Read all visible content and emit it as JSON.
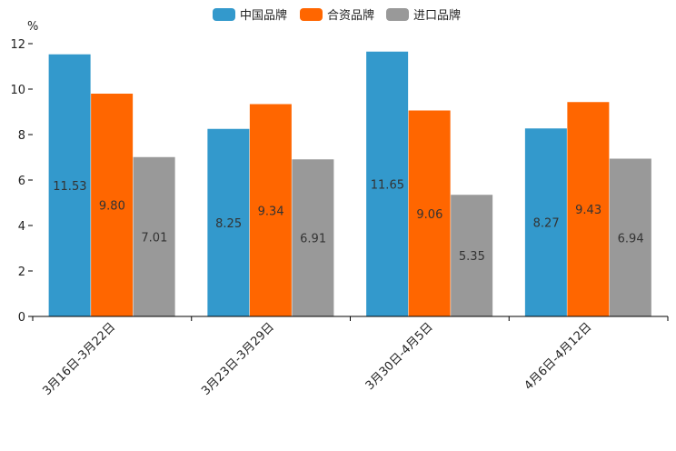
{
  "chart_data": {
    "type": "bar",
    "title": "",
    "xlabel": "",
    "ylabel": "%",
    "ylim": [
      0,
      12
    ],
    "yticks": [
      0,
      2,
      4,
      6,
      8,
      10,
      12
    ],
    "grid": false,
    "legend_position": "top-center",
    "categories": [
      "3月16日-3月22日",
      "3月23日-3月29日",
      "3月30日-4月5日",
      "4月6日-4月12日"
    ],
    "series": [
      {
        "name": "中国品牌",
        "color": "#3399CC",
        "values": [
          11.53,
          8.25,
          11.65,
          8.27
        ],
        "labels": [
          "11.53",
          "8.25",
          "11.65",
          "8.27"
        ]
      },
      {
        "name": "合资品牌",
        "color": "#FF6600",
        "values": [
          9.8,
          9.34,
          9.06,
          9.43
        ],
        "labels": [
          "9.80",
          "9.34",
          "9.06",
          "9.43"
        ]
      },
      {
        "name": "进口品牌",
        "color": "#999999",
        "values": [
          7.01,
          6.91,
          5.35,
          6.94
        ],
        "labels": [
          "7.01",
          "6.91",
          "5.35",
          "6.94"
        ]
      }
    ]
  }
}
